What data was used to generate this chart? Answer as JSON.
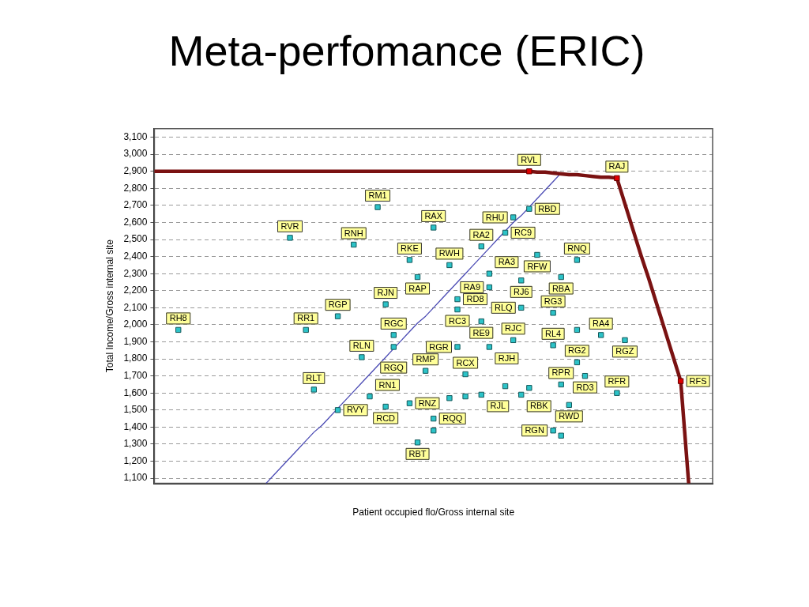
{
  "chart_data": {
    "type": "scatter",
    "title": "Meta-perfomance (ERIC)",
    "xlabel": "Patient occupied flo/Gross internal site",
    "ylabel": "Total Income/Gross internal site",
    "categories": [
      null,
      null,
      null,
      null,
      null,
      null,
      null,
      null,
      null,
      null,
      null,
      null,
      null,
      null,
      null,
      null,
      null,
      null,
      null,
      null,
      null,
      null,
      null,
      null,
      null,
      null,
      null,
      null,
      null,
      null,
      null,
      null,
      null,
      null,
      null,
      null,
      null,
      null,
      null,
      null,
      null,
      null,
      null,
      null,
      null,
      null,
      null,
      null,
      null,
      null,
      null,
      null,
      null,
      null,
      null,
      null,
      null,
      null,
      null,
      null,
      null,
      null,
      null,
      null,
      null,
      null,
      null,
      null,
      null,
      null,
      null
    ],
    "ylim": [
      1070,
      3150
    ],
    "yticks": [
      {
        "value": 1100,
        "label": "1,100"
      },
      {
        "value": 1200,
        "label": "1,200"
      },
      {
        "value": 1300,
        "label": "1,300"
      },
      {
        "value": 1400,
        "label": "1,400"
      },
      {
        "value": 1500,
        "label": "1,500"
      },
      {
        "value": 1600,
        "label": "1,600"
      },
      {
        "value": 1700,
        "label": "1,700"
      },
      {
        "value": 1800,
        "label": "1,800"
      },
      {
        "value": 1900,
        "label": "1,900"
      },
      {
        "value": 2000,
        "label": "2,000"
      },
      {
        "value": 2100,
        "label": "2,100"
      },
      {
        "value": 2200,
        "label": "2,200"
      },
      {
        "value": 2300,
        "label": "2,300"
      },
      {
        "value": 2400,
        "label": "2,400"
      },
      {
        "value": 2500,
        "label": "2,500"
      },
      {
        "value": 2600,
        "label": "2,600"
      },
      {
        "value": 2700,
        "label": "2,700"
      },
      {
        "value": 2800,
        "label": "2,800"
      },
      {
        "value": 2900,
        "label": "2,900"
      },
      {
        "value": 3000,
        "label": "3,000"
      },
      {
        "value": 3100,
        "label": "3,100"
      }
    ],
    "tick_labels": "y",
    "grid": "y",
    "marker": "square",
    "series": [
      {
        "type": "line",
        "color": "#7a1212",
        "marker": "none",
        "values": [
          2900,
          2900,
          2900,
          2900,
          2900,
          2900,
          2900,
          2900,
          2900,
          2900,
          2900,
          2900,
          2900,
          2900,
          2900,
          2900,
          2900,
          2900,
          2900,
          2900,
          2900,
          2900,
          2900,
          2900,
          2900,
          2900,
          2900,
          2900,
          2900,
          2900,
          2900,
          2900,
          2900,
          2900,
          2900,
          2900,
          2900,
          2900,
          2900,
          2900,
          2900,
          2900,
          2900,
          2900,
          2900,
          2900,
          2900,
          2900,
          2895,
          2895,
          2890,
          2885,
          2880,
          2880,
          2875,
          2870,
          2865,
          2865,
          2860,
          2710,
          2560,
          2410,
          2270,
          2120,
          1970,
          1820,
          1670,
          1070,
          null,
          null,
          null
        ]
      },
      {
        "type": "line",
        "color": "#4b4bb4",
        "marker": "none",
        "values": [
          null,
          null,
          null,
          null,
          null,
          null,
          null,
          null,
          null,
          null,
          null,
          null,
          null,
          null,
          1070,
          1120,
          1170,
          1220,
          1270,
          1320,
          1370,
          1410,
          1460,
          1510,
          1560,
          1610,
          1660,
          1710,
          1760,
          1810,
          1860,
          1910,
          1960,
          2010,
          2050,
          2100,
          2150,
          2200,
          2250,
          2300,
          2350,
          2400,
          2450,
          2500,
          2550,
          2600,
          2640,
          2690,
          2740,
          2790,
          2840,
          2890,
          null,
          null,
          null,
          null,
          null,
          null,
          null,
          null,
          null,
          null,
          null,
          null,
          null,
          null,
          null,
          null,
          null,
          null,
          null
        ]
      },
      {
        "color": "#2cc3c8",
        "values": [
          null,
          null,
          null,
          1970,
          null,
          null,
          null,
          null,
          null,
          null,
          null,
          null,
          null,
          null,
          null,
          null,
          null,
          2510,
          null,
          1970,
          1620,
          null,
          null,
          2050,
          null,
          2470,
          1810,
          1580,
          2690,
          2120,
          1940,
          null,
          2380,
          2280,
          1730,
          2570,
          null,
          2350,
          2150,
          1710,
          null,
          2460,
          2300,
          null,
          2540,
          2630,
          2260,
          2680,
          2410,
          null,
          2070,
          2280,
          1530,
          2380,
          1700,
          null,
          1940,
          null,
          1600,
          1910,
          null,
          null,
          null,
          null,
          null,
          null,
          null,
          null,
          null,
          null,
          null
        ],
        "value_labels": [
          null,
          null,
          null,
          "RH8",
          null,
          null,
          null,
          null,
          null,
          null,
          null,
          null,
          null,
          null,
          null,
          null,
          null,
          "RVR",
          null,
          "RR1",
          "RLT",
          null,
          null,
          "RGP",
          null,
          "RNH",
          "RLN",
          "RN1",
          "RM1",
          "RJN",
          "RGC",
          null,
          "RKE",
          "RAP",
          "RMP",
          "RAX",
          null,
          "RWH",
          "RD8",
          "RCX",
          null,
          "RA2",
          "RA3",
          null,
          "RC9",
          "RHU",
          "RJ6",
          "RBD",
          "RFW",
          null,
          "RG3",
          "RBA",
          "RWD",
          "RNQ",
          "RD3",
          null,
          "RA4",
          null,
          "RFR",
          "RGZ",
          null,
          null,
          null,
          null,
          null,
          null,
          null,
          null,
          null,
          null,
          null
        ]
      },
      {
        "color": "#2cc3c8",
        "values": [
          null,
          null,
          null,
          null,
          null,
          null,
          null,
          null,
          null,
          null,
          null,
          null,
          null,
          null,
          null,
          null,
          null,
          null,
          null,
          null,
          null,
          null,
          null,
          1500,
          null,
          null,
          null,
          null,
          null,
          1520,
          1870,
          null,
          1540,
          1310,
          null,
          1450,
          null,
          1570,
          2090,
          1580,
          null,
          2020,
          2220,
          null,
          1640,
          1910,
          2100,
          1630,
          null,
          null,
          1880,
          1650,
          null,
          1780,
          null,
          null,
          null,
          null,
          null,
          null,
          null,
          null,
          null,
          null,
          null,
          null,
          null,
          null,
          null,
          null,
          null
        ],
        "value_labels": [
          null,
          null,
          null,
          null,
          null,
          null,
          null,
          null,
          null,
          null,
          null,
          null,
          null,
          null,
          null,
          null,
          null,
          null,
          null,
          null,
          null,
          null,
          null,
          "RVY",
          null,
          null,
          null,
          null,
          null,
          "RCD",
          "RGQ",
          null,
          "RNZ",
          "RBT",
          null,
          "RQQ",
          null,
          null,
          "RC3",
          null,
          null,
          "RE9",
          "RA9",
          null,
          null,
          "RJC",
          "RLQ",
          null,
          null,
          null,
          "RL4",
          "RPR",
          null,
          "RG2",
          null,
          null,
          null,
          null,
          null,
          null,
          null,
          null,
          null,
          null,
          null,
          null,
          null,
          null,
          null,
          null,
          null
        ]
      },
      {
        "color": "#2cc3c8",
        "values": [
          null,
          null,
          null,
          null,
          null,
          null,
          null,
          null,
          null,
          null,
          null,
          null,
          null,
          null,
          null,
          null,
          null,
          null,
          null,
          null,
          null,
          null,
          null,
          null,
          null,
          null,
          null,
          null,
          null,
          null,
          null,
          null,
          null,
          null,
          null,
          1380,
          null,
          null,
          1870,
          null,
          null,
          1590,
          1870,
          null,
          null,
          null,
          1590,
          null,
          null,
          null,
          1380,
          1350,
          null,
          1970,
          null,
          null,
          null,
          null,
          null,
          null,
          null,
          null,
          null,
          null,
          null,
          null,
          null,
          null,
          null,
          null,
          null
        ],
        "value_labels": [
          null,
          null,
          null,
          null,
          null,
          null,
          null,
          null,
          null,
          null,
          null,
          null,
          null,
          null,
          null,
          null,
          null,
          null,
          null,
          null,
          null,
          null,
          null,
          null,
          null,
          null,
          null,
          null,
          null,
          null,
          null,
          null,
          null,
          null,
          null,
          null,
          null,
          null,
          "RGR",
          null,
          null,
          "RJL",
          "RJH",
          null,
          null,
          null,
          "RBK",
          null,
          null,
          null,
          "RGN",
          null,
          null,
          null,
          null,
          null,
          null,
          null,
          null,
          null,
          null,
          null,
          null,
          null,
          null,
          null,
          null,
          null,
          null,
          null,
          null
        ]
      },
      {
        "color": "#e00000",
        "values": [
          null,
          null,
          null,
          null,
          null,
          null,
          null,
          null,
          null,
          null,
          null,
          null,
          null,
          null,
          null,
          null,
          null,
          null,
          null,
          null,
          null,
          null,
          null,
          null,
          null,
          null,
          null,
          null,
          null,
          null,
          null,
          null,
          null,
          null,
          null,
          null,
          null,
          null,
          null,
          null,
          null,
          null,
          null,
          null,
          null,
          null,
          null,
          2900,
          null,
          null,
          null,
          null,
          null,
          null,
          null,
          null,
          null,
          null,
          2860,
          null,
          null,
          null,
          null,
          null,
          null,
          null,
          1670,
          null,
          null,
          null,
          null
        ],
        "value_labels": [
          null,
          null,
          null,
          null,
          null,
          null,
          null,
          null,
          null,
          null,
          null,
          null,
          null,
          null,
          null,
          null,
          null,
          null,
          null,
          null,
          null,
          null,
          null,
          null,
          null,
          null,
          null,
          null,
          null,
          null,
          null,
          null,
          null,
          null,
          null,
          null,
          null,
          null,
          null,
          null,
          null,
          null,
          null,
          null,
          null,
          null,
          null,
          "RVL",
          null,
          null,
          null,
          null,
          null,
          null,
          null,
          null,
          null,
          null,
          "RAJ",
          null,
          null,
          null,
          null,
          null,
          null,
          null,
          "RFS",
          null,
          null,
          null,
          null
        ]
      }
    ]
  }
}
